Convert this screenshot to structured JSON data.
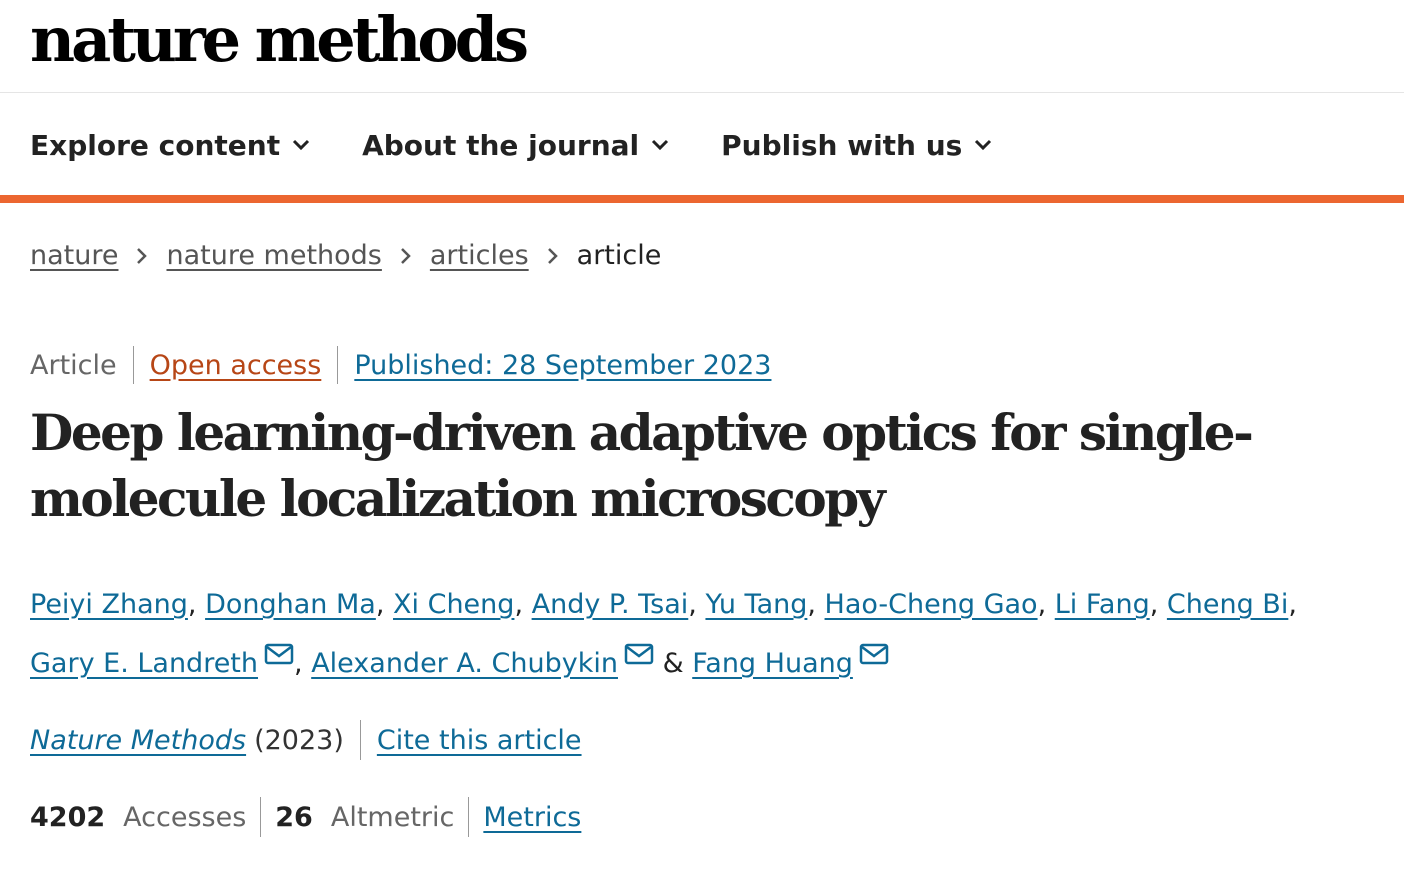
{
  "brand": {
    "name": "nature methods"
  },
  "nav": {
    "items": [
      {
        "label": "Explore content"
      },
      {
        "label": "About the journal"
      },
      {
        "label": "Publish with us"
      }
    ]
  },
  "breadcrumb": {
    "items": [
      "nature",
      "nature methods",
      "articles"
    ],
    "current": "article"
  },
  "article": {
    "type": "Article",
    "access": "Open access",
    "published": "Published: 28 September 2023",
    "title": "Deep learning-driven adaptive optics for single-molecule localization microscopy",
    "authors": [
      "Peiyi Zhang",
      "Donghan Ma",
      "Xi Cheng",
      "Andy P. Tsai",
      "Yu Tang",
      "Hao-Cheng Gao",
      "Li Fang",
      "Cheng Bi",
      "Gary E. Landreth",
      "Alexander A. Chubykin",
      "Fang Huang"
    ],
    "journal": "Nature Methods",
    "year": "(2023)",
    "cite_label": "Cite this article"
  },
  "metrics": {
    "accesses_value": "4202",
    "accesses_label": "Accesses",
    "altmetric_value": "26",
    "altmetric_label": "Altmetric",
    "metrics_link": "Metrics"
  },
  "colors": {
    "accent_orange": "#ec6630",
    "link_blue": "#0e6a97",
    "open_access": "#b74616"
  }
}
